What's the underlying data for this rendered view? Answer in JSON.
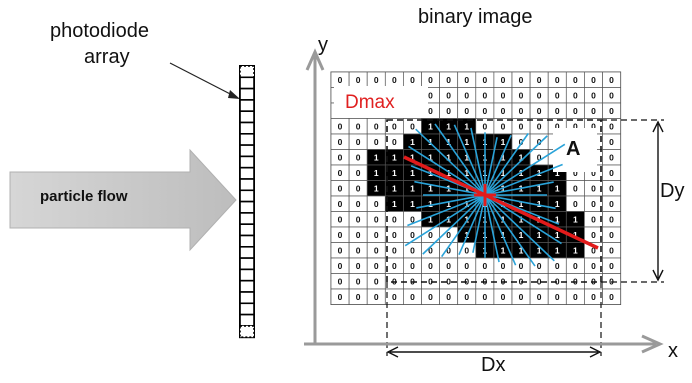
{
  "title": "binary image",
  "photodiode_label_line1": "photodiode",
  "photodiode_label_line2": "array",
  "flow_label": "particle flow",
  "dmax_label": "Dmax",
  "area_label": "A",
  "dy_label": "Dy",
  "dx_label": "Dx",
  "x_axis_label": "x",
  "y_axis_label": "y",
  "grid_rows": [
    "0000000000000000",
    "0000000000000000",
    "0000000000000000",
    "0000011100000000",
    "0000111111000000",
    "0011111111100000",
    "0011111111111000",
    "0011111111111000",
    "0001111111111000",
    "0000011111111100",
    "0000000111111100",
    "0000000011111100",
    "0000000000000000",
    "0000000000000000",
    "0000000000000000"
  ],
  "colors": {
    "dmax_line": "#e21b1b",
    "ray_lines": "#29a3d9",
    "center_mark": "#e21b1b",
    "arrow_fill": "#c8c8c8",
    "filled_cell": "#000000"
  }
}
